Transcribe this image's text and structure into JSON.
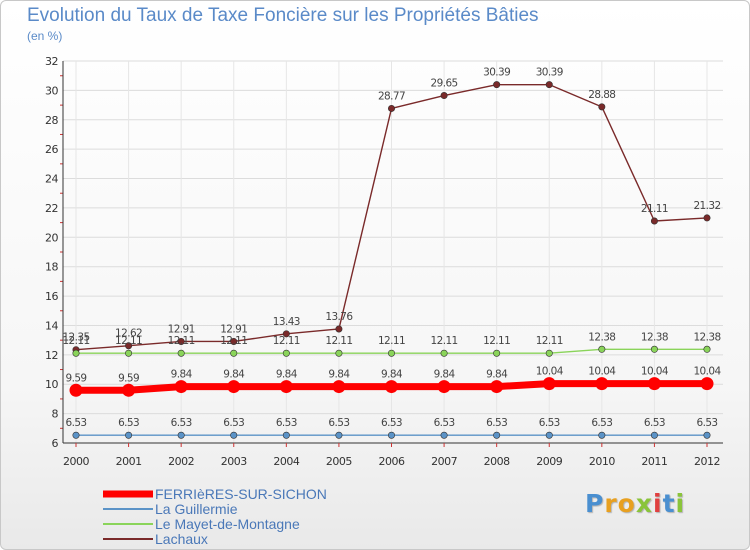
{
  "chart_data": {
    "type": "line",
    "title": "Evolution du Taux de Taxe Foncière sur les Propriétés Bâties",
    "ylabel": "(en %)",
    "xlabel": "",
    "ylim": [
      6,
      32
    ],
    "yticks": [
      6,
      8,
      10,
      12,
      14,
      16,
      18,
      20,
      22,
      24,
      26,
      28,
      30,
      32
    ],
    "categories": [
      "2000",
      "2001",
      "2002",
      "2003",
      "2004",
      "2005",
      "2006",
      "2007",
      "2008",
      "2009",
      "2010",
      "2011",
      "2012"
    ],
    "series": [
      {
        "name": "FERRIèRES-SUR-SICHON",
        "color": "#ff0000",
        "values": [
          9.59,
          9.59,
          9.84,
          9.84,
          9.84,
          9.84,
          9.84,
          9.84,
          9.84,
          10.04,
          10.04,
          10.04,
          10.04
        ],
        "labels": [
          "9.59",
          "9.59",
          "9.84",
          "9.84",
          "9.84",
          "9.84",
          "9.84",
          "9.84",
          "9.84",
          "10.04",
          "10.04",
          "10.04",
          "10.04"
        ]
      },
      {
        "name": "La Guillermie",
        "color": "#5b93c7",
        "values": [
          6.53,
          6.53,
          6.53,
          6.53,
          6.53,
          6.53,
          6.53,
          6.53,
          6.53,
          6.53,
          6.53,
          6.53,
          6.53
        ],
        "labels": [
          "6.53",
          "6.53",
          "6.53",
          "6.53",
          "6.53",
          "6.53",
          "6.53",
          "6.53",
          "6.53",
          "6.53",
          "6.53",
          "6.53",
          "6.53"
        ]
      },
      {
        "name": "Le Mayet-de-Montagne",
        "color": "#8ad45a",
        "values": [
          12.11,
          12.11,
          12.11,
          12.11,
          12.11,
          12.11,
          12.11,
          12.11,
          12.11,
          12.11,
          12.38,
          12.38,
          12.38
        ],
        "labels": [
          "12.11",
          "12.11",
          "12.11",
          "12.11",
          "12.11",
          "12.11",
          "12.11",
          "12.11",
          "12.11",
          "12.11",
          "12.38",
          "12.38",
          "12.38"
        ]
      },
      {
        "name": "Lachaux",
        "color": "#7a2a2a",
        "values": [
          12.35,
          12.62,
          12.91,
          12.91,
          13.43,
          13.76,
          28.77,
          29.65,
          30.39,
          30.39,
          28.88,
          21.11,
          21.32
        ],
        "labels": [
          "12.35",
          "12.62",
          "12.91",
          "12.91",
          "13.43",
          "13.76",
          "28.77",
          "29.65",
          "30.39",
          "30.39",
          "28.88",
          "21.11",
          "21.32"
        ]
      }
    ]
  },
  "logo": {
    "text": "Proxiti",
    "letters": [
      {
        "ch": "P",
        "color": "#4a8fd0"
      },
      {
        "ch": "r",
        "color": "#e8a020"
      },
      {
        "ch": "o",
        "color": "#e8a020"
      },
      {
        "ch": "x",
        "color": "#8ac43a"
      },
      {
        "ch": "i",
        "color": "#e04040"
      },
      {
        "ch": "t",
        "color": "#4a8fd0"
      },
      {
        "ch": "i",
        "color": "#8ac43a"
      }
    ]
  }
}
